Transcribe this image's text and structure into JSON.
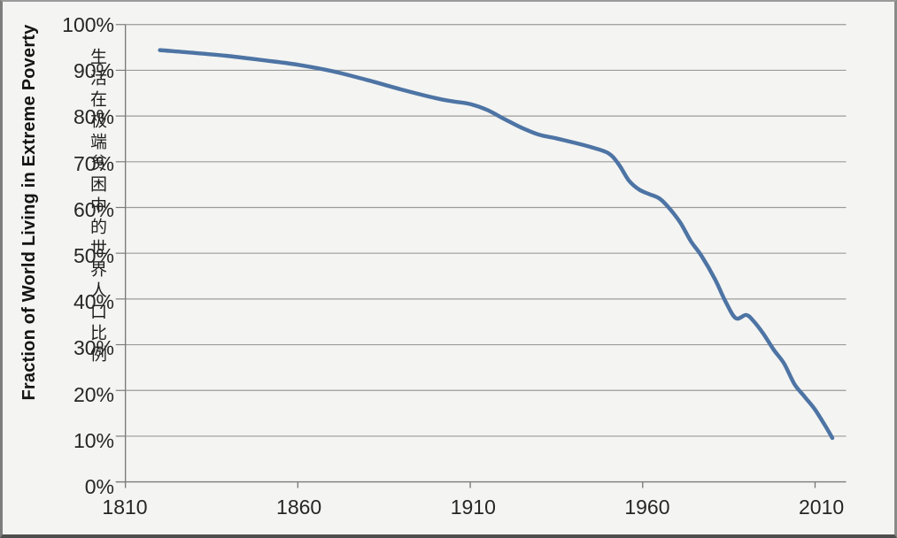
{
  "figure": {
    "background": "#f4f4f2",
    "grid_color": "#9b9b9b",
    "axis_color": "#7c7c7c",
    "text_color": "#262626",
    "line_color": "#4d74a4"
  },
  "chart_data": {
    "type": "line",
    "title": "",
    "xlabel": "",
    "ylabel": "Fraction of World Living in Extreme Poverty",
    "ylabel_translation_zh": "生活在极端贫困中的世界人口比例",
    "x_ticks": [
      1810,
      1860,
      1910,
      1960,
      2010
    ],
    "y_ticks_percent": [
      0,
      10,
      20,
      30,
      40,
      50,
      60,
      70,
      80,
      90,
      100
    ],
    "y_tick_format": "percent",
    "xlim": [
      1810,
      2019
    ],
    "ylim": [
      0,
      100
    ],
    "grid": "horizontal",
    "legend": "none",
    "series": [
      {
        "name": "extreme_poverty_share",
        "color": "#4d74a4",
        "points": [
          [
            1820,
            94.4
          ],
          [
            1830,
            93.8
          ],
          [
            1840,
            93.1
          ],
          [
            1850,
            92.2
          ],
          [
            1860,
            91.2
          ],
          [
            1870,
            89.8
          ],
          [
            1880,
            87.9
          ],
          [
            1890,
            85.8
          ],
          [
            1900,
            83.9
          ],
          [
            1905,
            83.2
          ],
          [
            1910,
            82.6
          ],
          [
            1915,
            81.3
          ],
          [
            1920,
            79.3
          ],
          [
            1925,
            77.4
          ],
          [
            1930,
            75.9
          ],
          [
            1935,
            75.1
          ],
          [
            1940,
            74.2
          ],
          [
            1945,
            73.2
          ],
          [
            1950,
            71.9
          ],
          [
            1953,
            69.5
          ],
          [
            1956,
            65.9
          ],
          [
            1959,
            63.9
          ],
          [
            1962,
            62.9
          ],
          [
            1965,
            61.9
          ],
          [
            1968,
            59.6
          ],
          [
            1971,
            56.6
          ],
          [
            1974,
            52.6
          ],
          [
            1977,
            49.5
          ],
          [
            1981,
            44.3
          ],
          [
            1984,
            39.5
          ],
          [
            1987,
            35.8
          ],
          [
            1990,
            36.5
          ],
          [
            1992,
            35.3
          ],
          [
            1995,
            32.4
          ],
          [
            1998,
            28.9
          ],
          [
            2001,
            25.9
          ],
          [
            2004,
            21.4
          ],
          [
            2007,
            18.6
          ],
          [
            2010,
            15.8
          ],
          [
            2013,
            12.2
          ],
          [
            2015,
            9.6
          ]
        ]
      }
    ]
  }
}
